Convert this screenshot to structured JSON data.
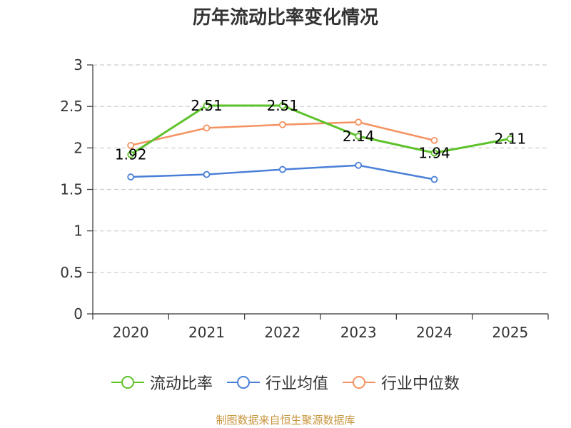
{
  "chart_data": {
    "type": "line",
    "title": "历年流动比率变化情况",
    "categories": [
      "2020",
      "2021",
      "2022",
      "2023",
      "2024",
      "2025"
    ],
    "ylim": [
      0,
      3
    ],
    "yticks": [
      "0",
      "0.5",
      "1",
      "1.5",
      "2",
      "2.5",
      "3"
    ],
    "ytick_values": [
      0,
      0.5,
      1,
      1.5,
      2,
      2.5,
      3
    ],
    "grid": true,
    "legend_position": "bottom",
    "series": [
      {
        "key": "current_ratio",
        "name": "流动比率",
        "color": "#5ec22a",
        "values": [
          1.92,
          2.51,
          2.51,
          2.14,
          1.94,
          2.11
        ],
        "labels": [
          "1.92",
          "2.51",
          "2.51",
          "2.14",
          "1.94",
          "2.11"
        ]
      },
      {
        "key": "industry_avg",
        "name": "行业均值",
        "color": "#4a7fd8",
        "values": [
          1.65,
          1.68,
          1.74,
          1.79,
          1.62,
          null
        ]
      },
      {
        "key": "industry_median",
        "name": "行业中位数",
        "color": "#f59261",
        "values": [
          2.03,
          2.24,
          2.28,
          2.31,
          2.09,
          null
        ]
      }
    ]
  },
  "source_note": "制图数据来自恒生聚源数据库"
}
